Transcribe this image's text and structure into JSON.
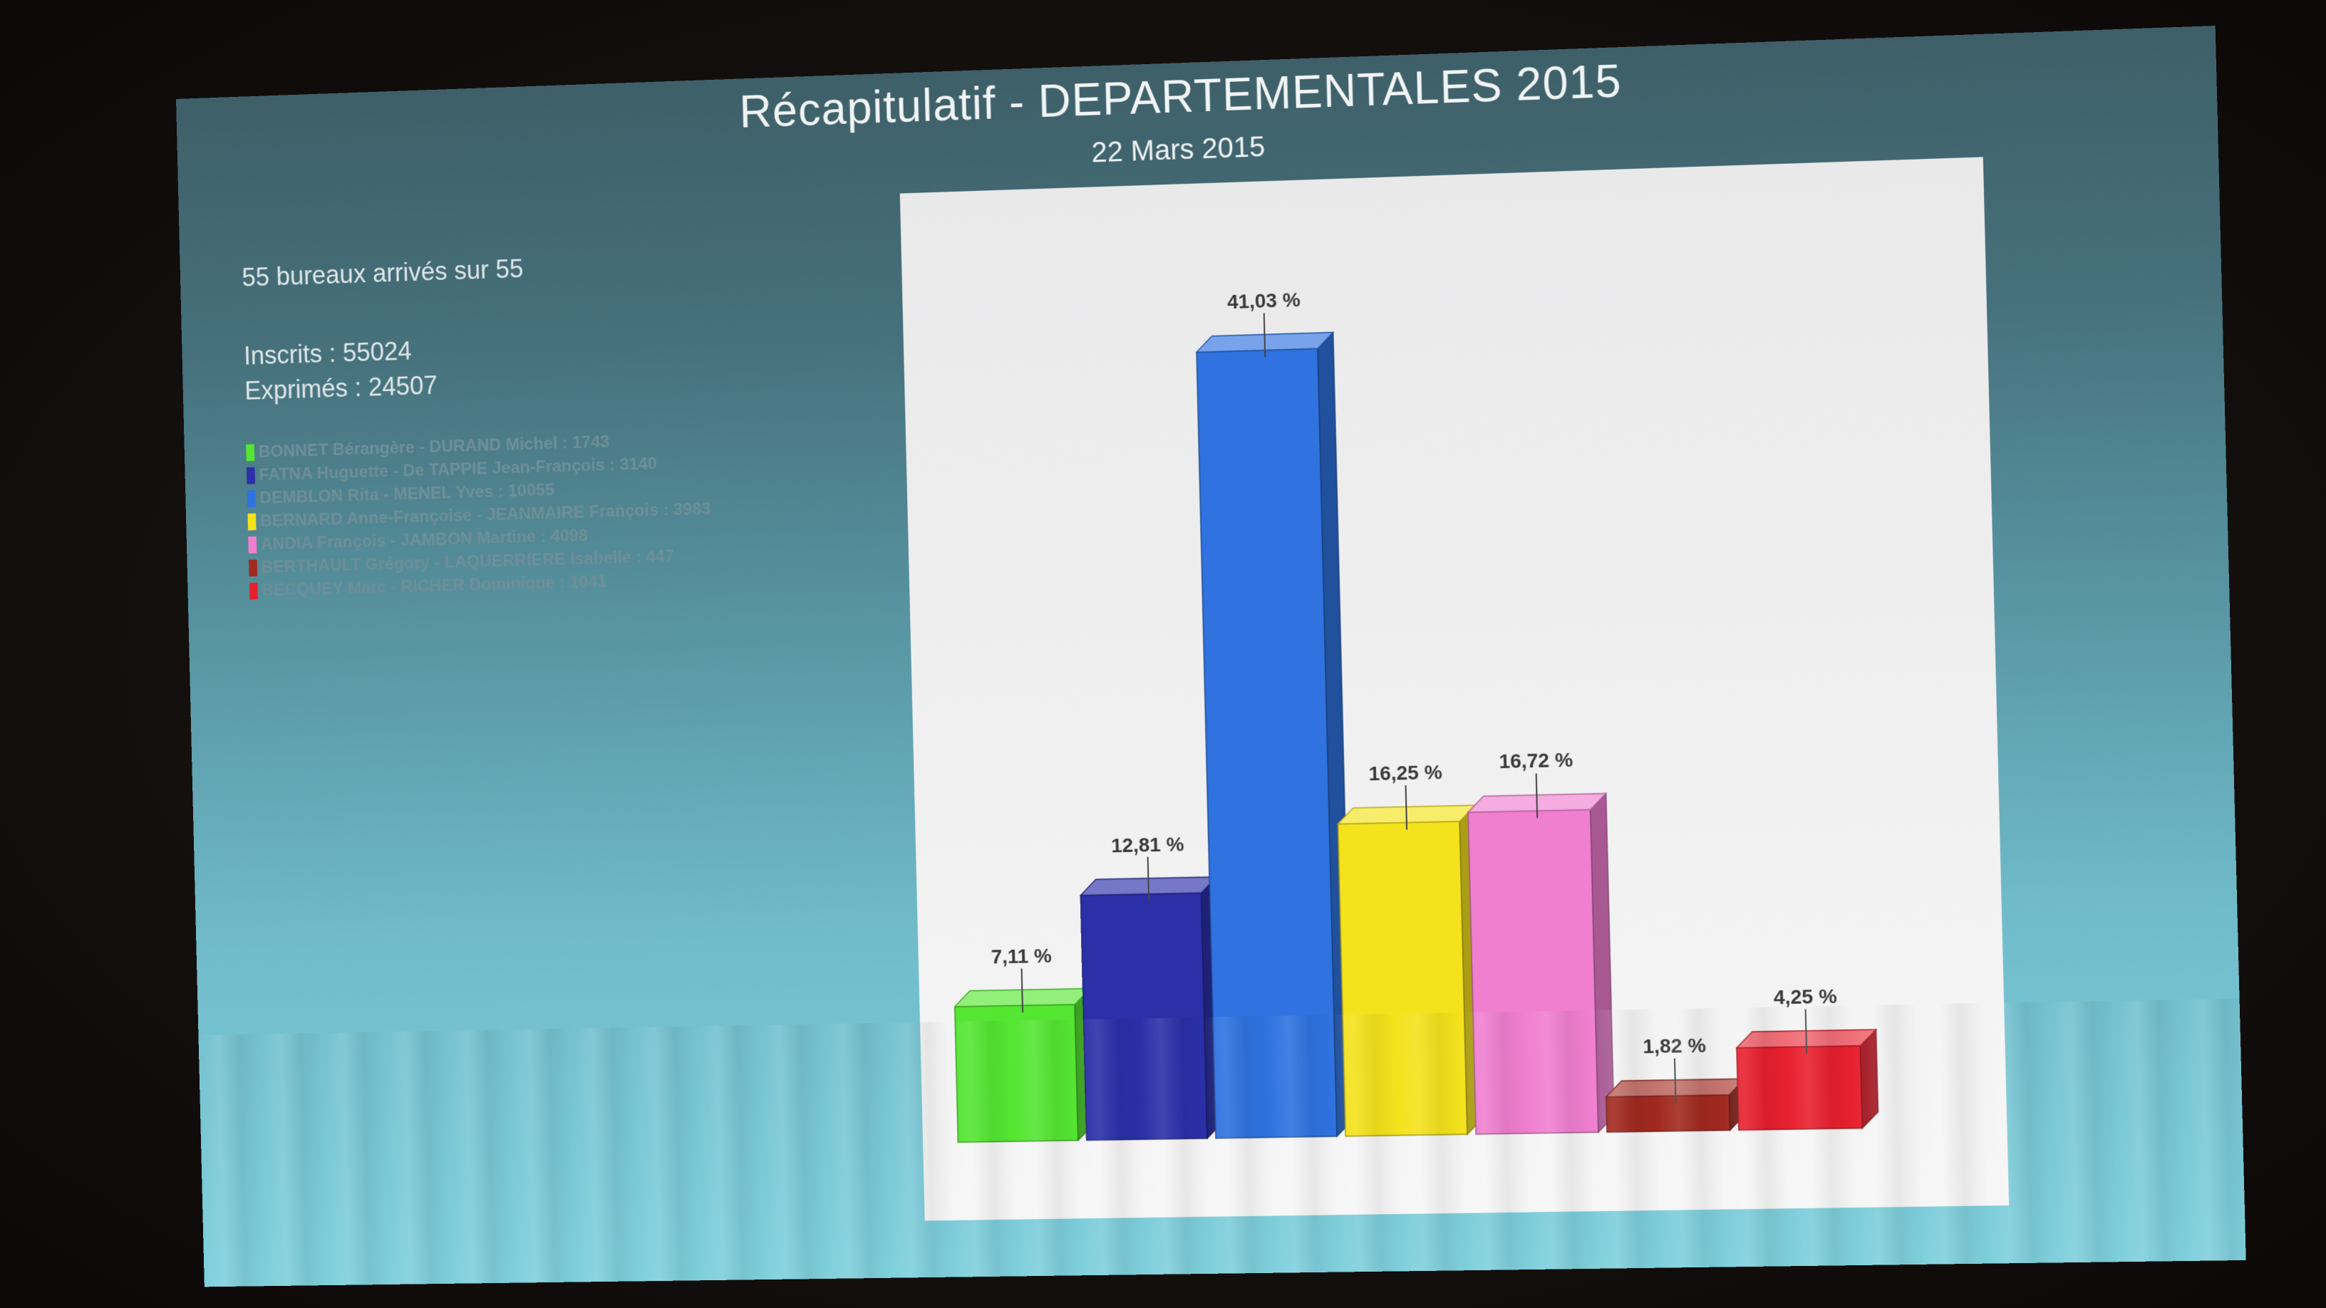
{
  "title": "Récapitulatif - DEPARTEMENTALES 2015",
  "date": "22 Mars 2015",
  "bureaux": "55 bureaux arrivés sur 55",
  "inscrits": "Inscrits : 55024",
  "exprimes": "Exprimés : 24507",
  "legend": [
    {
      "label": "BONNET Bérangère - DURAND Michel : 1743",
      "color": "#55e632"
    },
    {
      "label": "FATNA Huguette - De TAPPIE Jean-François : 3140",
      "color": "#2b2fa8"
    },
    {
      "label": "DEMBLON Rita - MENEL Yves : 10055",
      "color": "#2f72e0"
    },
    {
      "label": "BERNARD Anne-Françoise - JEANMAIRE François : 3983",
      "color": "#f4e21c"
    },
    {
      "label": "ANDIA François - JAMBON Martine : 4098",
      "color": "#f07fd0"
    },
    {
      "label": "BERTHAULT Grégory - LAQUERRIERE Isabelle : 447",
      "color": "#a1291f"
    },
    {
      "label": "BECQUEY Marc - RICHER Dominique : 1041",
      "color": "#e8202e"
    }
  ],
  "chart_data": {
    "type": "bar",
    "categories": [
      "BONNET Bérangère - DURAND Michel",
      "FATNA Huguette - De TAPPIE Jean-François",
      "DEMBLON Rita - MENEL Yves",
      "BERNARD Anne-Françoise - JEANMAIRE François",
      "ANDIA François - JAMBON Martine",
      "BERTHAULT Grégory - LAQUERRIERE Isabelle",
      "BECQUEY Marc - RICHER Dominique"
    ],
    "values": [
      7.11,
      12.81,
      41.03,
      16.25,
      16.72,
      1.82,
      4.25
    ],
    "data_labels": [
      "7,11 %",
      "12,81 %",
      "41,03 %",
      "16,25 %",
      "16,72 %",
      "1,82 %",
      "4,25 %"
    ],
    "colors": [
      "#55e632",
      "#2b2fa8",
      "#2f72e0",
      "#f4e21c",
      "#f07fd0",
      "#a1291f",
      "#e8202e"
    ],
    "ylim": [
      0,
      45
    ],
    "style": "3d-bars",
    "grid": false
  }
}
